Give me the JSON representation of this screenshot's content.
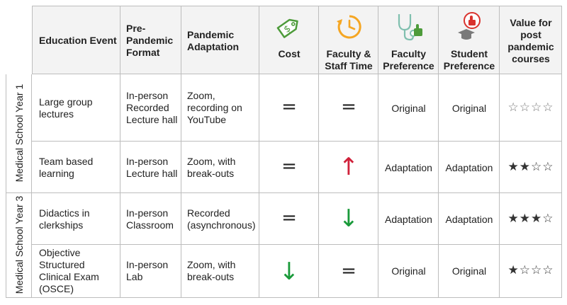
{
  "headers": {
    "education_event": "Education Event",
    "pre_pandemic_1": "Pre-",
    "pre_pandemic_2": "Pandemic",
    "pre_pandemic_3": "Format",
    "adaptation_1": "Pandemic",
    "adaptation_2": "Adaptation",
    "cost": "Cost",
    "faculty_time_1": "Faculty &",
    "faculty_time_2": "Staff Time",
    "faculty_pref_1": "Faculty",
    "faculty_pref_2": "Preference",
    "student_pref_1": "Student",
    "student_pref_2": "Preference",
    "value_1": "Value for",
    "value_2": "post",
    "value_3": "pandemic",
    "value_4": "courses"
  },
  "groups": {
    "year1": "Medical School Year 1",
    "year3": "Medical School Year 3"
  },
  "rows": [
    {
      "event": [
        "Large group",
        "lectures"
      ],
      "pre": [
        "In-person",
        "Recorded",
        "Lecture hall"
      ],
      "adapt": [
        "Zoom,",
        "recording on",
        "YouTube"
      ],
      "cost": "=",
      "time": "=",
      "faculty_pref": "Original",
      "student_pref": "Original",
      "stars": "☆☆☆☆"
    },
    {
      "event": [
        "Team based",
        "learning"
      ],
      "pre": [
        "In-person",
        "Lecture hall"
      ],
      "adapt": [
        "Zoom, with",
        "break-outs"
      ],
      "cost": "=",
      "time": "↑",
      "faculty_pref": "Adaptation",
      "student_pref": "Adaptation",
      "stars": "★★☆☆"
    },
    {
      "event": [
        "Didactics in",
        "clerkships"
      ],
      "pre": [
        "In-person",
        "Classroom"
      ],
      "adapt": [
        "Recorded",
        "(asynchronous)"
      ],
      "cost": "=",
      "time": "↓",
      "faculty_pref": "Adaptation",
      "student_pref": "Adaptation",
      "stars": "★★★☆"
    },
    {
      "event": [
        "Objective",
        "Structured",
        "Clinical Exam",
        "(OSCE)"
      ],
      "pre": [
        "In-person",
        "Lab"
      ],
      "adapt": [
        "Zoom, with",
        "break-outs"
      ],
      "cost": "↓",
      "time": "=",
      "faculty_pref": "Original",
      "student_pref": "Original",
      "stars": "★☆☆☆"
    }
  ],
  "colors": {
    "icon_green": "#4d9b3a",
    "icon_orange": "#f5a623",
    "icon_teal": "#7fbfae",
    "icon_red": "#d9322d",
    "arrow_up": "#d0213a",
    "arrow_down": "#1a9a3a"
  },
  "icons": [
    "price-tag-icon",
    "clock-refresh-icon",
    "stethoscope-thumbs-up-icon",
    "graduate-thumbs-up-icon"
  ]
}
